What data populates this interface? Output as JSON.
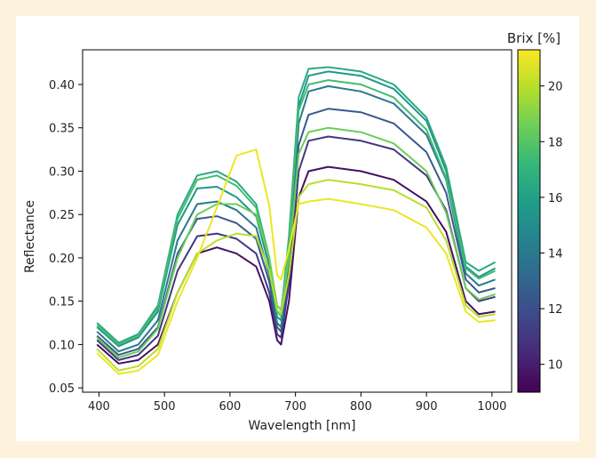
{
  "chart_data": {
    "type": "line",
    "xlabel": "Wavelength [nm]",
    "ylabel": "Reflectance",
    "xlim": [
      375,
      1030
    ],
    "ylim": [
      0.045,
      0.44
    ],
    "xticks": [
      400,
      500,
      600,
      700,
      800,
      900,
      1000
    ],
    "yticks": [
      0.05,
      0.1,
      0.15,
      0.2,
      0.25,
      0.3,
      0.35,
      0.4
    ],
    "grid": false,
    "colorbar": {
      "label": "Brix [%]",
      "range": [
        9,
        21.3
      ],
      "ticks": [
        10,
        12,
        14,
        16,
        18,
        20
      ],
      "colormap": [
        "#440154",
        "#482878",
        "#3e4989",
        "#31688e",
        "#26828e",
        "#1f9e89",
        "#35b779",
        "#6ece58",
        "#b5de2b",
        "#fde725"
      ]
    },
    "series_count": 10,
    "x": [
      397,
      430,
      460,
      490,
      520,
      550,
      580,
      610,
      640,
      660,
      672,
      678,
      690,
      705,
      720,
      750,
      800,
      850,
      900,
      930,
      960,
      980,
      1005
    ],
    "series": [
      {
        "brix": 9.5,
        "values": [
          0.1,
          0.078,
          0.082,
          0.1,
          0.16,
          0.205,
          0.212,
          0.205,
          0.19,
          0.15,
          0.105,
          0.1,
          0.15,
          0.27,
          0.3,
          0.305,
          0.3,
          0.29,
          0.265,
          0.23,
          0.15,
          0.135,
          0.138
        ]
      },
      {
        "brix": 11.0,
        "values": [
          0.105,
          0.082,
          0.088,
          0.11,
          0.185,
          0.225,
          0.228,
          0.222,
          0.205,
          0.16,
          0.112,
          0.108,
          0.17,
          0.3,
          0.335,
          0.34,
          0.335,
          0.325,
          0.295,
          0.255,
          0.165,
          0.15,
          0.155
        ]
      },
      {
        "brix": 12.5,
        "values": [
          0.11,
          0.088,
          0.095,
          0.12,
          0.205,
          0.245,
          0.248,
          0.24,
          0.222,
          0.172,
          0.12,
          0.115,
          0.185,
          0.33,
          0.365,
          0.372,
          0.368,
          0.355,
          0.322,
          0.275,
          0.175,
          0.16,
          0.165
        ]
      },
      {
        "brix": 14.0,
        "values": [
          0.115,
          0.092,
          0.1,
          0.128,
          0.22,
          0.262,
          0.265,
          0.255,
          0.235,
          0.18,
          0.125,
          0.12,
          0.2,
          0.355,
          0.392,
          0.398,
          0.392,
          0.378,
          0.342,
          0.29,
          0.182,
          0.168,
          0.175
        ]
      },
      {
        "brix": 15.5,
        "values": [
          0.12,
          0.098,
          0.108,
          0.138,
          0.238,
          0.28,
          0.282,
          0.27,
          0.248,
          0.19,
          0.132,
          0.128,
          0.215,
          0.375,
          0.41,
          0.415,
          0.41,
          0.395,
          0.358,
          0.3,
          0.19,
          0.178,
          0.188
        ]
      },
      {
        "brix": 16.5,
        "values": [
          0.125,
          0.102,
          0.112,
          0.145,
          0.25,
          0.295,
          0.3,
          0.288,
          0.262,
          0.2,
          0.14,
          0.135,
          0.225,
          0.385,
          0.418,
          0.42,
          0.415,
          0.4,
          0.362,
          0.305,
          0.195,
          0.185,
          0.195
        ]
      },
      {
        "brix": 17.5,
        "values": [
          0.122,
          0.1,
          0.11,
          0.142,
          0.245,
          0.29,
          0.295,
          0.283,
          0.258,
          0.198,
          0.138,
          0.133,
          0.22,
          0.37,
          0.4,
          0.405,
          0.4,
          0.385,
          0.348,
          0.292,
          0.188,
          0.176,
          0.185
        ]
      },
      {
        "brix": 18.5,
        "values": [
          0.108,
          0.085,
          0.092,
          0.118,
          0.2,
          0.25,
          0.262,
          0.262,
          0.25,
          0.2,
          0.145,
          0.14,
          0.2,
          0.32,
          0.345,
          0.35,
          0.345,
          0.332,
          0.3,
          0.252,
          0.165,
          0.152,
          0.158
        ]
      },
      {
        "brix": 20.0,
        "values": [
          0.095,
          0.07,
          0.075,
          0.095,
          0.16,
          0.205,
          0.22,
          0.228,
          0.225,
          0.185,
          0.14,
          0.135,
          0.18,
          0.27,
          0.285,
          0.29,
          0.285,
          0.278,
          0.258,
          0.22,
          0.145,
          0.132,
          0.135
        ]
      },
      {
        "brix": 21.0,
        "values": [
          0.09,
          0.066,
          0.07,
          0.088,
          0.15,
          0.2,
          0.258,
          0.318,
          0.325,
          0.26,
          0.18,
          0.175,
          0.21,
          0.262,
          0.265,
          0.268,
          0.262,
          0.255,
          0.235,
          0.205,
          0.138,
          0.126,
          0.128
        ]
      }
    ]
  }
}
